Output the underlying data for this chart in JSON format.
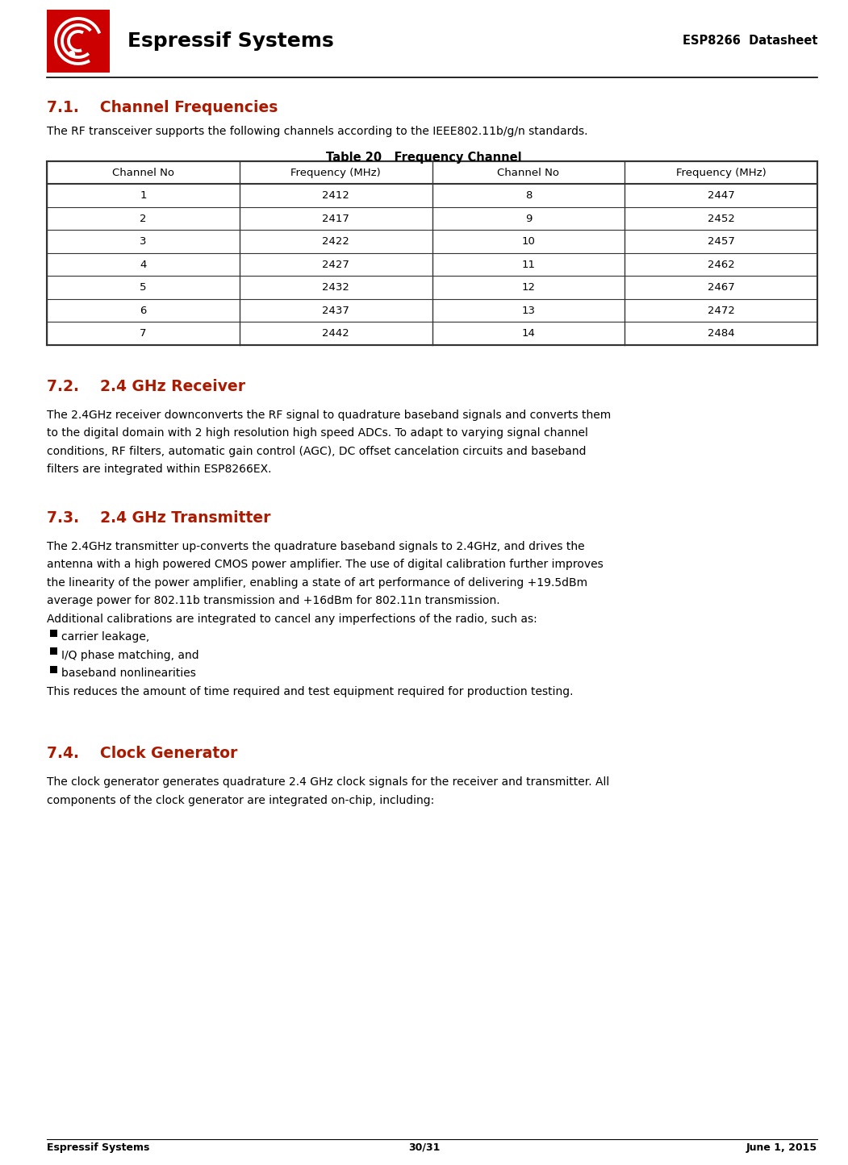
{
  "page_width": 10.51,
  "page_height": 14.45,
  "bg_color": "#ffffff",
  "header": {
    "logo_text": "Espressif Systems",
    "logo_bg": "#cc0000",
    "right_text": "ESP8266  Datasheet"
  },
  "section_71": {
    "heading": "7.1.    Channel Frequencies",
    "heading_color": "#aa1a00",
    "body": "The RF transceiver supports the following channels according to the IEEE802.11b/g/n standards.",
    "table_title": "Table 20   Frequency Channel",
    "table_headers": [
      "Channel No",
      "Frequency (MHz)",
      "Channel No",
      "Frequency (MHz)"
    ],
    "table_data": [
      [
        "1",
        "2412",
        "8",
        "2447"
      ],
      [
        "2",
        "2417",
        "9",
        "2452"
      ],
      [
        "3",
        "2422",
        "10",
        "2457"
      ],
      [
        "4",
        "2427",
        "11",
        "2462"
      ],
      [
        "5",
        "2432",
        "12",
        "2467"
      ],
      [
        "6",
        "2437",
        "13",
        "2472"
      ],
      [
        "7",
        "2442",
        "14",
        "2484"
      ]
    ]
  },
  "section_72": {
    "heading": "7.2.    2.4 GHz Receiver",
    "heading_color": "#aa1a00",
    "lines": [
      "The 2.4GHz receiver downconverts the RF signal to quadrature baseband signals and converts them",
      "to the digital domain with 2 high resolution high speed ADCs. To adapt to varying signal channel",
      "conditions, RF filters, automatic gain control (AGC), DC offset cancelation circuits and baseband",
      "filters are integrated within ESP8266EX."
    ]
  },
  "section_73": {
    "heading": "7.3.    2.4 GHz Transmitter",
    "heading_color": "#aa1a00",
    "lines1": [
      "The 2.4GHz transmitter up-converts the quadrature baseband signals to 2.4GHz, and drives the",
      "antenna with a high powered CMOS power amplifier. The use of digital calibration further improves",
      "the linearity of the power amplifier, enabling a state of art performance of delivering +19.5dBm",
      "average power for 802.11b transmission and +16dBm for 802.11n transmission."
    ],
    "body2": "Additional calibrations are integrated to cancel any imperfections of the radio, such as:",
    "bullets": [
      "carrier leakage,",
      "I/Q phase matching, and",
      "baseband nonlinearities"
    ],
    "body3": "This reduces the amount of time required and test equipment required for production testing."
  },
  "section_74": {
    "heading": "7.4.    Clock Generator",
    "heading_color": "#aa1a00",
    "lines": [
      "The clock generator generates quadrature 2.4 GHz clock signals for the receiver and transmitter. All",
      "components of the clock generator are integrated on-chip, including:"
    ]
  },
  "footer": {
    "left": "Espressif Systems",
    "center": "30/31",
    "right": "June 1, 2015"
  }
}
